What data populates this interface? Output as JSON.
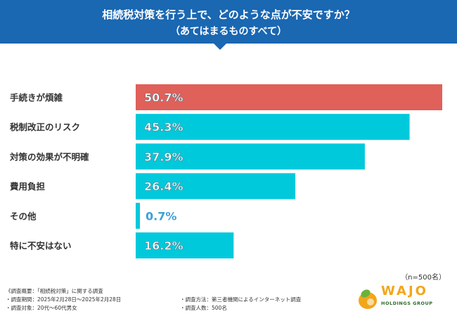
{
  "header": {
    "title": "相続税対策を行う上で、どのような点が不安ですか？",
    "subtitle": "（あてはまるものすべて）"
  },
  "colors": {
    "header": "#1a67b2",
    "top_bar": "#e0605a",
    "bar": "#00c9dc",
    "small_value_text": "#3aa0d6"
  },
  "chart_data": {
    "type": "bar",
    "orientation": "horizontal",
    "categories": [
      "手続きが煩雑",
      "税制改正のリスク",
      "対策の効果が不明確",
      "費用負担",
      "その他",
      "特に不安はない"
    ],
    "values": [
      50.7,
      45.3,
      37.9,
      26.4,
      0.7,
      16.2
    ],
    "value_labels": [
      "50.7%",
      "45.3%",
      "37.9%",
      "26.4%",
      "0.7%",
      "16.2%"
    ],
    "unit": "%",
    "xlim": [
      0,
      50.7
    ],
    "grid": false
  },
  "note": "（n=500名）",
  "footer": {
    "overview": "《調査概要：「相続税対策」に関する調査",
    "period": "・調査期間：2025年2月28日～2025年2月28日",
    "target": "・調査対象：20代～60代男女",
    "method": "・調査方法：第三者機関によるインターネット調査",
    "count": "・調査人数：500名"
  },
  "logo": {
    "name": "WAJO",
    "sub": "HOLDINGS GROUP"
  }
}
